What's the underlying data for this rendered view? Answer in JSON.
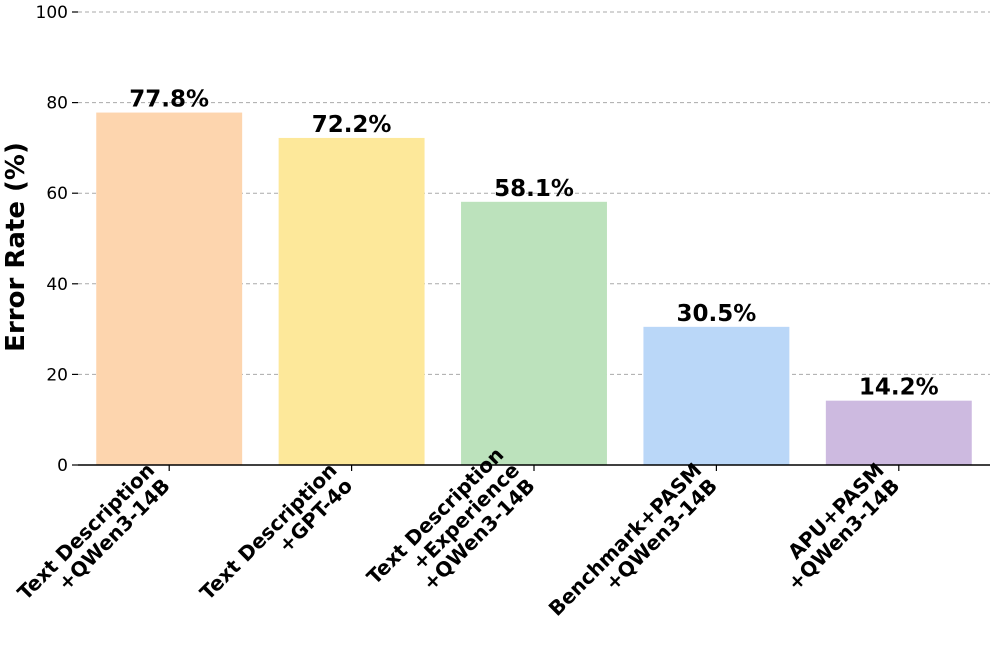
{
  "chart_data": {
    "type": "bar",
    "title": "",
    "xlabel": "",
    "ylabel": "Error Rate (%)",
    "ylim": [
      0,
      100
    ],
    "yticks": [
      0,
      20,
      40,
      60,
      80,
      100
    ],
    "grid": "y-dashed",
    "categories": [
      [
        "Text Description",
        "+QWen3-14B"
      ],
      [
        "Text Description",
        "+GPT-4o"
      ],
      [
        "Text Description",
        "+Experience",
        "+QWen3-14B"
      ],
      [
        "Benchmark+PASM",
        "+QWen3-14B"
      ],
      [
        "APU+PASM",
        "+QWen3-14B"
      ]
    ],
    "values": [
      77.8,
      72.2,
      58.1,
      30.5,
      14.2
    ],
    "value_labels": [
      "77.8%",
      "72.2%",
      "58.1%",
      "30.5%",
      "14.2%"
    ],
    "colors": [
      "#fdd5ae",
      "#fde89a",
      "#bce2bc",
      "#bad7f8",
      "#cdbae0"
    ]
  }
}
